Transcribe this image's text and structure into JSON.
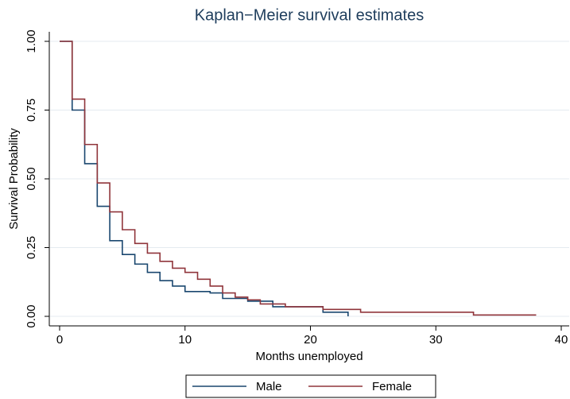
{
  "chart_data": {
    "type": "step",
    "title": "Kaplan−Meier survival estimates",
    "xlabel": "Months unemployed",
    "ylabel": "Survival Probability",
    "xlim": [
      0,
      40
    ],
    "xticks": [
      0,
      10,
      20,
      30,
      40
    ],
    "ylim": [
      0,
      1
    ],
    "yticks": [
      {
        "value": 0,
        "label": "0.00"
      },
      {
        "value": 0.25,
        "label": "0.25"
      },
      {
        "value": 0.5,
        "label": "0.50"
      },
      {
        "value": 0.75,
        "label": "0.75"
      },
      {
        "value": 1,
        "label": "1.00"
      }
    ],
    "grid": true,
    "legend": "bottom",
    "series": [
      {
        "name": "Male",
        "color": "#1a476f",
        "x": [
          0,
          1,
          2,
          3,
          4,
          5,
          6,
          7,
          8,
          9,
          10,
          12,
          13,
          15,
          17,
          21,
          23
        ],
        "values": [
          1,
          0.75,
          0.555,
          0.4,
          0.275,
          0.225,
          0.19,
          0.16,
          0.13,
          0.11,
          0.09,
          0.085,
          0.065,
          0.055,
          0.035,
          0.015,
          0
        ]
      },
      {
        "name": "Female",
        "color": "#90353b",
        "x": [
          0,
          1,
          2,
          3,
          4,
          5,
          6,
          7,
          8,
          9,
          10,
          11,
          12,
          13,
          14,
          15,
          16,
          18,
          21,
          24,
          33,
          38
        ],
        "values": [
          1,
          0.79,
          0.625,
          0.485,
          0.38,
          0.315,
          0.265,
          0.23,
          0.2,
          0.175,
          0.16,
          0.135,
          0.11,
          0.085,
          0.07,
          0.06,
          0.045,
          0.035,
          0.025,
          0.015,
          0.005,
          0.005
        ]
      }
    ]
  }
}
